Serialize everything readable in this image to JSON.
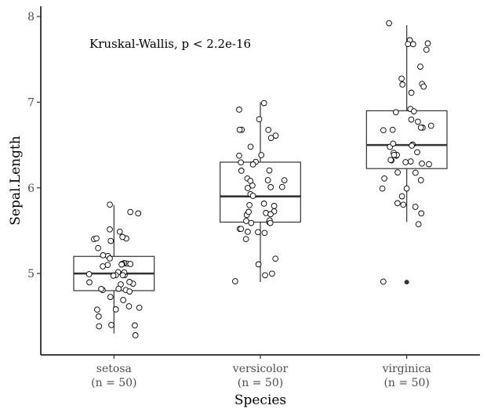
{
  "chart_data": {
    "type": "boxplot",
    "xlabel": "Species",
    "ylabel": "Sepal.Length",
    "ylim": [
      4.05,
      8.12
    ],
    "yticks": [
      5,
      6,
      7,
      8
    ],
    "annotation": "Kruskal-Wallis, p < 2.2e-16",
    "grid": false,
    "legend": "none",
    "colors": {
      "box_fill": "#ffffff",
      "line": "#333333",
      "point_fill": "#ffffff",
      "point_stroke": "#000000"
    },
    "groups": [
      {
        "category": "setosa",
        "count_label": "(n = 50)",
        "box": {
          "q1": 4.8,
          "median": 5.0,
          "q3": 5.2,
          "whisker_low": 4.3,
          "whisker_high": 5.8
        },
        "outliers": [],
        "points": [
          5.1,
          4.9,
          4.7,
          4.6,
          5.0,
          5.4,
          4.6,
          5.0,
          4.4,
          4.9,
          5.4,
          4.8,
          4.8,
          4.3,
          5.8,
          5.7,
          5.4,
          5.1,
          5.7,
          5.1,
          5.4,
          5.1,
          4.6,
          5.1,
          4.8,
          5.0,
          5.0,
          5.2,
          5.2,
          4.7,
          4.8,
          5.4,
          5.2,
          5.5,
          4.9,
          5.0,
          5.5,
          4.9,
          4.4,
          5.1,
          5.0,
          4.5,
          4.4,
          5.0,
          5.1,
          4.8,
          5.1,
          4.6,
          5.3,
          5.0
        ]
      },
      {
        "category": "versicolor",
        "count_label": "(n = 50)",
        "box": {
          "q1": 5.6,
          "median": 5.9,
          "q3": 6.3,
          "whisker_low": 4.9,
          "whisker_high": 7.0
        },
        "outliers": [],
        "points": [
          7.0,
          6.4,
          6.9,
          5.5,
          6.5,
          5.7,
          6.3,
          4.9,
          6.6,
          5.2,
          5.0,
          5.9,
          6.0,
          6.1,
          5.6,
          6.7,
          5.6,
          5.8,
          6.2,
          5.6,
          5.9,
          6.1,
          6.3,
          6.1,
          6.4,
          6.6,
          6.8,
          6.7,
          6.0,
          5.7,
          5.5,
          5.5,
          5.8,
          6.0,
          5.4,
          6.0,
          6.7,
          6.3,
          5.6,
          5.5,
          5.5,
          6.1,
          5.8,
          5.0,
          5.6,
          5.7,
          5.7,
          6.2,
          5.1,
          5.7
        ]
      },
      {
        "category": "virginica",
        "count_label": "(n = 50)",
        "box": {
          "q1": 6.225,
          "median": 6.5,
          "q3": 6.9,
          "whisker_low": 5.6,
          "whisker_high": 7.9
        },
        "outliers": [
          4.9
        ],
        "points": [
          6.3,
          5.8,
          7.1,
          6.3,
          6.5,
          7.6,
          4.9,
          7.3,
          6.7,
          7.2,
          6.5,
          6.4,
          6.8,
          5.7,
          5.8,
          6.4,
          6.5,
          7.7,
          7.7,
          6.0,
          6.9,
          5.6,
          7.7,
          6.3,
          6.7,
          7.2,
          6.2,
          6.1,
          6.4,
          7.2,
          7.4,
          7.9,
          6.4,
          6.3,
          6.1,
          7.7,
          6.3,
          6.4,
          6.0,
          6.9,
          6.7,
          6.9,
          5.8,
          6.8,
          6.7,
          6.7,
          6.3,
          6.5,
          6.2,
          5.9
        ]
      }
    ]
  }
}
